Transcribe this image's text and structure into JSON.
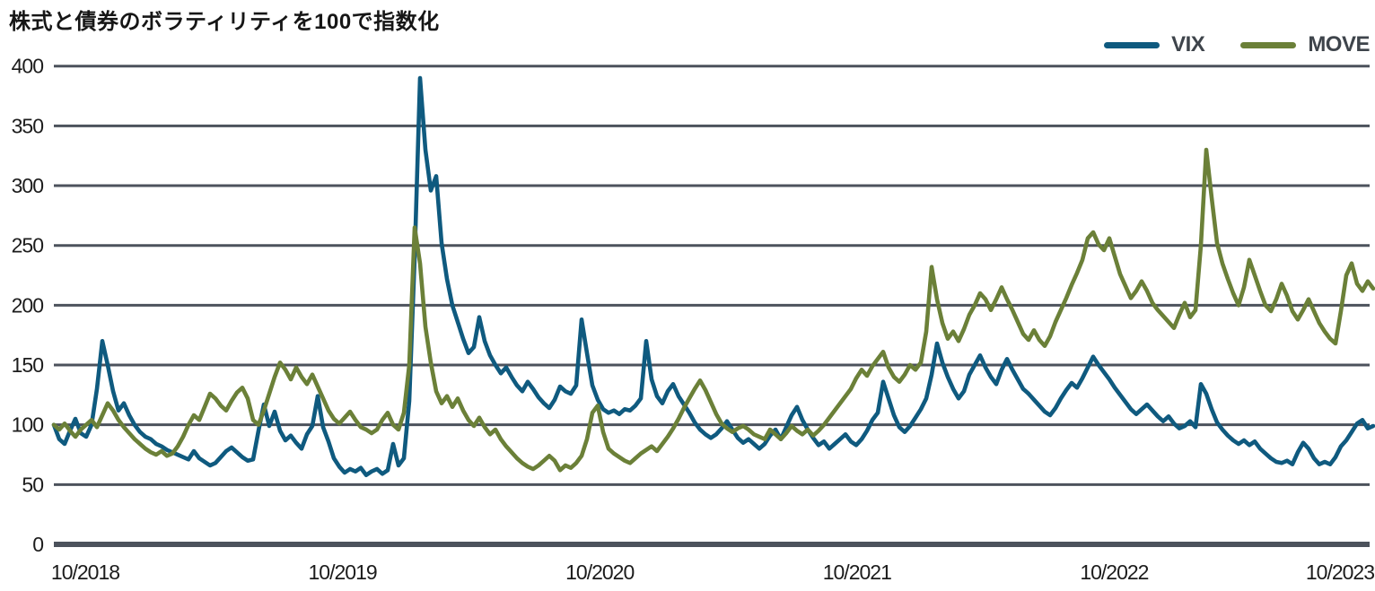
{
  "title": "株式と債券のボラティリティを100で指数化",
  "legend": [
    {
      "label": "VIX",
      "color": "#0f5a7f"
    },
    {
      "label": "MOVE",
      "color": "#6b8038"
    }
  ],
  "colors": {
    "vix_line": "#0f5a7f",
    "move_line": "#6b8038",
    "gridline": "#4c525c",
    "axis_text": "#1c1c1c",
    "legend_text": "#3e444b",
    "background": "#ffffff"
  },
  "chart_data": {
    "type": "line",
    "title": "株式と債券のボラティリティを100で指数化",
    "xlabel": "",
    "ylabel": "",
    "ylim": [
      0,
      400
    ],
    "y_ticks": [
      0,
      50,
      100,
      150,
      200,
      250,
      300,
      350,
      400
    ],
    "x_tick_labels": [
      "10/2018",
      "10/2019",
      "10/2020",
      "10/2021",
      "10/2022",
      "10/2023"
    ],
    "grid": true,
    "legend_position": "top-right",
    "x_note": "values sampled ~weekly from 10/2018 to 10/2023, evenly spaced",
    "series": [
      {
        "name": "VIX",
        "color": "#0f5a7f",
        "values": [
          100,
          88,
          84,
          95,
          105,
          93,
          90,
          100,
          130,
          170,
          150,
          128,
          112,
          118,
          108,
          100,
          94,
          90,
          88,
          84,
          82,
          79,
          77,
          75,
          73,
          71,
          78,
          72,
          69,
          66,
          68,
          73,
          78,
          81,
          77,
          73,
          70,
          71,
          95,
          117,
          99,
          111,
          95,
          87,
          91,
          85,
          80,
          92,
          99,
          124,
          98,
          86,
          72,
          65,
          60,
          63,
          61,
          64,
          58,
          61,
          63,
          59,
          62,
          84,
          66,
          72,
          120,
          240,
          390,
          330,
          296,
          308,
          252,
          222,
          200,
          186,
          172,
          160,
          165,
          190,
          170,
          158,
          150,
          143,
          148,
          140,
          133,
          128,
          136,
          130,
          123,
          118,
          114,
          121,
          132,
          128,
          126,
          133,
          188,
          160,
          133,
          121,
          113,
          110,
          112,
          109,
          113,
          112,
          116,
          122,
          170,
          138,
          124,
          118,
          128,
          134,
          124,
          117,
          110,
          102,
          96,
          92,
          89,
          92,
          97,
          103,
          96,
          89,
          85,
          88,
          84,
          80,
          84,
          91,
          96,
          88,
          98,
          108,
          115,
          104,
          96,
          89,
          83,
          86,
          80,
          84,
          88,
          92,
          86,
          83,
          88,
          95,
          104,
          110,
          136,
          122,
          108,
          98,
          94,
          99,
          106,
          113,
          122,
          142,
          168,
          152,
          140,
          130,
          122,
          128,
          142,
          150,
          158,
          148,
          140,
          134,
          146,
          155,
          146,
          138,
          130,
          126,
          121,
          116,
          111,
          108,
          114,
          122,
          129,
          135,
          131,
          139,
          148,
          157,
          150,
          144,
          138,
          131,
          125,
          119,
          113,
          109,
          113,
          117,
          112,
          107,
          103,
          107,
          101,
          97,
          99,
          103,
          98,
          134,
          126,
          113,
          102,
          96,
          91,
          87,
          84,
          87,
          83,
          86,
          80,
          76,
          72,
          69,
          68,
          70,
          67,
          77,
          85,
          80,
          72,
          67,
          69,
          67,
          73,
          82,
          87,
          94,
          101,
          104,
          97,
          99
        ]
      },
      {
        "name": "MOVE",
        "color": "#6b8038",
        "values": [
          100,
          96,
          101,
          95,
          90,
          96,
          100,
          104,
          98,
          108,
          118,
          112,
          104,
          98,
          93,
          88,
          84,
          80,
          77,
          75,
          78,
          74,
          76,
          82,
          90,
          100,
          108,
          104,
          115,
          126,
          122,
          116,
          112,
          120,
          127,
          131,
          122,
          104,
          100,
          112,
          126,
          140,
          152,
          146,
          138,
          148,
          140,
          134,
          142,
          132,
          122,
          112,
          105,
          101,
          106,
          111,
          104,
          98,
          96,
          93,
          96,
          104,
          110,
          100,
          96,
          110,
          150,
          265,
          235,
          182,
          152,
          128,
          118,
          124,
          115,
          122,
          112,
          104,
          99,
          106,
          98,
          92,
          96,
          88,
          82,
          77,
          72,
          68,
          65,
          63,
          66,
          70,
          74,
          70,
          62,
          66,
          64,
          68,
          74,
          88,
          110,
          116,
          94,
          80,
          76,
          73,
          70,
          68,
          72,
          76,
          79,
          82,
          78,
          84,
          90,
          97,
          105,
          114,
          122,
          130,
          137,
          129,
          119,
          109,
          101,
          97,
          94,
          97,
          99,
          96,
          92,
          90,
          88,
          96,
          92,
          88,
          93,
          99,
          95,
          92,
          96,
          91,
          95,
          100,
          106,
          112,
          118,
          124,
          130,
          139,
          146,
          141,
          149,
          155,
          161,
          148,
          140,
          136,
          142,
          150,
          146,
          152,
          178,
          232,
          205,
          185,
          172,
          178,
          170,
          180,
          192,
          200,
          210,
          205,
          196,
          205,
          215,
          205,
          196,
          186,
          176,
          171,
          179,
          171,
          166,
          174,
          186,
          196,
          206,
          217,
          227,
          238,
          256,
          261,
          251,
          246,
          256,
          241,
          226,
          216,
          206,
          212,
          220,
          212,
          202,
          196,
          191,
          186,
          181,
          192,
          202,
          190,
          196,
          250,
          330,
          290,
          252,
          235,
          222,
          210,
          200,
          215,
          238,
          225,
          212,
          200,
          195,
          205,
          218,
          208,
          195,
          188,
          196,
          205,
          195,
          185,
          178,
          172,
          168,
          195,
          225,
          235,
          218,
          212,
          220,
          214
        ]
      }
    ]
  }
}
